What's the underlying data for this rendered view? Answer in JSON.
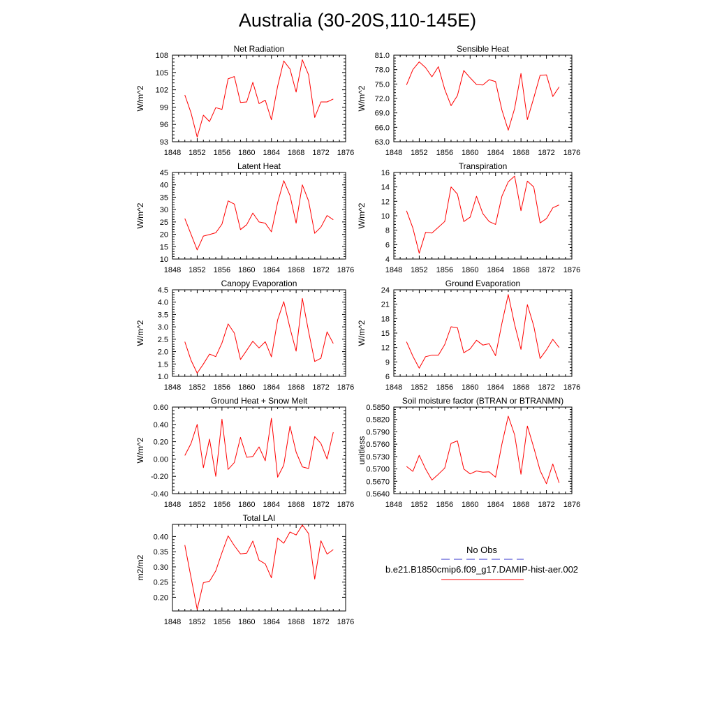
{
  "page": {
    "title": "Australia (30-20S,110-145E)"
  },
  "legend": {
    "entries": [
      {
        "name": "No Obs",
        "color": "#3333cc",
        "dash": "dashed"
      },
      {
        "name": "b.e21.B1850cmip6.f09_g17.DAMIP-hist-aer.002",
        "color": "#ff0000",
        "dash": "solid"
      }
    ]
  },
  "chart_data": [
    {
      "type": "line",
      "title": "Net Radiation",
      "ylabel": "W/m^2",
      "xlim": [
        1848,
        1876
      ],
      "ylim": [
        93,
        108
      ],
      "xticks": [
        1848,
        1852,
        1856,
        1860,
        1864,
        1868,
        1872,
        1876
      ],
      "yticks": [
        "93",
        "96",
        "99",
        "102",
        "105",
        "108"
      ],
      "x": [
        1850,
        1851,
        1852,
        1853,
        1854,
        1855,
        1856,
        1857,
        1858,
        1859,
        1860,
        1861,
        1862,
        1863,
        1864,
        1865,
        1866,
        1867,
        1868,
        1869,
        1870,
        1871,
        1872,
        1873,
        1874
      ],
      "series": [
        {
          "color": "#ff0000",
          "values": [
            101.1,
            98.0,
            93.8,
            97.6,
            96.5,
            98.9,
            98.6,
            103.9,
            104.3,
            99.8,
            99.9,
            103.3,
            99.6,
            100.2,
            96.8,
            102.6,
            107.0,
            105.6,
            101.6,
            107.2,
            104.6,
            97.2,
            99.9,
            99.9,
            100.4
          ]
        }
      ]
    },
    {
      "type": "line",
      "title": "Sensible Heat",
      "ylabel": "W/m^2",
      "xlim": [
        1848,
        1876
      ],
      "ylim": [
        63,
        81
      ],
      "xticks": [
        1848,
        1852,
        1856,
        1860,
        1864,
        1868,
        1872,
        1876
      ],
      "yticks": [
        "63.0",
        "66.0",
        "69.0",
        "72.0",
        "75.0",
        "78.0",
        "81.0"
      ],
      "x": [
        1850,
        1851,
        1852,
        1853,
        1854,
        1855,
        1856,
        1857,
        1858,
        1859,
        1860,
        1861,
        1862,
        1863,
        1864,
        1865,
        1866,
        1867,
        1868,
        1869,
        1870,
        1871,
        1872,
        1873,
        1874
      ],
      "series": [
        {
          "color": "#ff0000",
          "values": [
            74.8,
            78.0,
            79.6,
            78.4,
            76.5,
            78.6,
            73.9,
            70.5,
            72.6,
            77.8,
            76.3,
            74.9,
            74.8,
            75.9,
            75.5,
            69.6,
            65.4,
            69.9,
            77.2,
            67.6,
            72.1,
            76.8,
            76.9,
            72.4,
            74.4
          ]
        }
      ]
    },
    {
      "type": "line",
      "title": "Latent Heat",
      "ylabel": "W/m^2",
      "xlim": [
        1848,
        1876
      ],
      "ylim": [
        10,
        45
      ],
      "xticks": [
        1848,
        1852,
        1856,
        1860,
        1864,
        1868,
        1872,
        1876
      ],
      "yticks": [
        "10",
        "15",
        "20",
        "25",
        "30",
        "35",
        "40",
        "45"
      ],
      "x": [
        1850,
        1851,
        1852,
        1853,
        1854,
        1855,
        1856,
        1857,
        1858,
        1859,
        1860,
        1861,
        1862,
        1863,
        1864,
        1865,
        1866,
        1867,
        1868,
        1869,
        1870,
        1871,
        1872,
        1873,
        1874
      ],
      "series": [
        {
          "color": "#ff0000",
          "values": [
            26.4,
            20.0,
            13.7,
            19.3,
            19.9,
            20.6,
            24.1,
            33.5,
            32.2,
            21.9,
            23.9,
            28.6,
            25.0,
            24.5,
            21.0,
            32.8,
            41.7,
            35.7,
            24.5,
            40.0,
            33.5,
            20.4,
            22.9,
            27.6,
            25.9
          ]
        }
      ]
    },
    {
      "type": "line",
      "title": "Transpiration",
      "ylabel": "W/m^2",
      "xlim": [
        1848,
        1876
      ],
      "ylim": [
        4,
        16
      ],
      "xticks": [
        1848,
        1852,
        1856,
        1860,
        1864,
        1868,
        1872,
        1876
      ],
      "yticks": [
        "4",
        "6",
        "8",
        "10",
        "12",
        "14",
        "16"
      ],
      "x": [
        1850,
        1851,
        1852,
        1853,
        1854,
        1855,
        1856,
        1857,
        1858,
        1859,
        1860,
        1861,
        1862,
        1863,
        1864,
        1865,
        1866,
        1867,
        1868,
        1869,
        1870,
        1871,
        1872,
        1873,
        1874
      ],
      "series": [
        {
          "color": "#ff0000",
          "values": [
            10.7,
            8.3,
            4.8,
            7.7,
            7.6,
            8.4,
            9.2,
            14.0,
            13.0,
            9.2,
            9.8,
            12.7,
            10.3,
            9.2,
            8.8,
            12.7,
            14.7,
            15.5,
            10.7,
            14.8,
            14.0,
            9.0,
            9.6,
            11.1,
            11.5
          ]
        }
      ]
    },
    {
      "type": "line",
      "title": "Canopy Evaporation",
      "ylabel": "W/m^2",
      "xlim": [
        1848,
        1876
      ],
      "ylim": [
        1.0,
        4.5
      ],
      "xticks": [
        1848,
        1852,
        1856,
        1860,
        1864,
        1868,
        1872,
        1876
      ],
      "yticks": [
        "1.0",
        "1.5",
        "2.0",
        "2.5",
        "3.0",
        "3.5",
        "4.0",
        "4.5"
      ],
      "x": [
        1850,
        1851,
        1852,
        1853,
        1854,
        1855,
        1856,
        1857,
        1858,
        1859,
        1860,
        1861,
        1862,
        1863,
        1864,
        1865,
        1866,
        1867,
        1868,
        1869,
        1870,
        1871,
        1872,
        1873,
        1874
      ],
      "series": [
        {
          "color": "#ff0000",
          "values": [
            2.4,
            1.65,
            1.13,
            1.5,
            1.9,
            1.8,
            2.35,
            3.12,
            2.75,
            1.68,
            2.05,
            2.42,
            2.15,
            2.4,
            1.79,
            3.28,
            4.02,
            2.95,
            2.02,
            4.15,
            2.82,
            1.6,
            1.73,
            2.8,
            2.33
          ]
        }
      ]
    },
    {
      "type": "line",
      "title": "Ground Evaporation",
      "ylabel": "W/m^2",
      "xlim": [
        1848,
        1876
      ],
      "ylim": [
        6,
        24
      ],
      "xticks": [
        1848,
        1852,
        1856,
        1860,
        1864,
        1868,
        1872,
        1876
      ],
      "yticks": [
        "6",
        "9",
        "12",
        "15",
        "18",
        "21",
        "24"
      ],
      "x": [
        1850,
        1851,
        1852,
        1853,
        1854,
        1855,
        1856,
        1857,
        1858,
        1859,
        1860,
        1861,
        1862,
        1863,
        1864,
        1865,
        1866,
        1867,
        1868,
        1869,
        1870,
        1871,
        1872,
        1873,
        1874
      ],
      "series": [
        {
          "color": "#ff0000",
          "values": [
            13.2,
            10.2,
            7.7,
            10.1,
            10.4,
            10.4,
            12.6,
            16.3,
            16.1,
            10.9,
            11.7,
            13.5,
            12.5,
            12.8,
            10.3,
            17.0,
            23.0,
            16.8,
            11.6,
            20.9,
            16.5,
            9.7,
            11.5,
            13.7,
            12.0
          ]
        }
      ]
    },
    {
      "type": "line",
      "title": "Ground Heat + Snow Melt",
      "ylabel": "W/m^2",
      "xlim": [
        1848,
        1876
      ],
      "ylim": [
        -0.4,
        0.6
      ],
      "xticks": [
        1848,
        1852,
        1856,
        1860,
        1864,
        1868,
        1872,
        1876
      ],
      "yticks": [
        "-0.40",
        "-0.20",
        "0.00",
        "0.20",
        "0.40",
        "0.60"
      ],
      "x": [
        1850,
        1851,
        1852,
        1853,
        1854,
        1855,
        1856,
        1857,
        1858,
        1859,
        1860,
        1861,
        1862,
        1863,
        1864,
        1865,
        1866,
        1867,
        1868,
        1869,
        1870,
        1871,
        1872,
        1873,
        1874
      ],
      "series": [
        {
          "color": "#ff0000",
          "values": [
            0.04,
            0.18,
            0.4,
            -0.1,
            0.23,
            -0.2,
            0.46,
            -0.12,
            -0.04,
            0.25,
            0.02,
            0.03,
            0.14,
            -0.02,
            0.47,
            -0.21,
            -0.07,
            0.38,
            0.08,
            -0.09,
            -0.11,
            0.26,
            0.18,
            0.0,
            0.31
          ]
        }
      ]
    },
    {
      "type": "line",
      "title": "Soil moisture factor (BTRAN or BTRANMN)",
      "ylabel": "unitless",
      "xlim": [
        1848,
        1876
      ],
      "ylim": [
        0.564,
        0.585
      ],
      "xticks": [
        1848,
        1852,
        1856,
        1860,
        1864,
        1868,
        1872,
        1876
      ],
      "yticks": [
        "0.5640",
        "0.5670",
        "0.5700",
        "0.5730",
        "0.5760",
        "0.5790",
        "0.5820",
        "0.5850"
      ],
      "x": [
        1850,
        1851,
        1852,
        1853,
        1854,
        1855,
        1856,
        1857,
        1858,
        1859,
        1860,
        1861,
        1862,
        1863,
        1864,
        1865,
        1866,
        1867,
        1868,
        1869,
        1870,
        1871,
        1872,
        1873,
        1874
      ],
      "series": [
        {
          "color": "#ff0000",
          "values": [
            0.5706,
            0.5694,
            0.5733,
            0.57,
            0.5673,
            0.5687,
            0.5702,
            0.5762,
            0.5768,
            0.57,
            0.5688,
            0.5695,
            0.5692,
            0.5693,
            0.568,
            0.576,
            0.5828,
            0.5783,
            0.5687,
            0.5804,
            0.5752,
            0.5696,
            0.5664,
            0.5712,
            0.5666
          ]
        }
      ]
    },
    {
      "type": "line",
      "title": "Total LAI",
      "ylabel": "m2/m2",
      "xlim": [
        1848,
        1876
      ],
      "ylim": [
        0.155,
        0.44
      ],
      "xticks": [
        1848,
        1852,
        1856,
        1860,
        1864,
        1868,
        1872,
        1876
      ],
      "yticks": [
        "0.20",
        "0.25",
        "0.30",
        "0.35",
        "0.40"
      ],
      "ytick_values": [
        0.2,
        0.25,
        0.3,
        0.35,
        0.4
      ],
      "x": [
        1850,
        1851,
        1852,
        1853,
        1854,
        1855,
        1856,
        1857,
        1858,
        1859,
        1860,
        1861,
        1862,
        1863,
        1864,
        1865,
        1866,
        1867,
        1868,
        1869,
        1870,
        1871,
        1872,
        1873,
        1874
      ],
      "series": [
        {
          "color": "#ff0000",
          "values": [
            0.372,
            0.265,
            0.16,
            0.248,
            0.253,
            0.287,
            0.347,
            0.402,
            0.37,
            0.343,
            0.345,
            0.385,
            0.322,
            0.31,
            0.264,
            0.395,
            0.378,
            0.415,
            0.405,
            0.438,
            0.41,
            0.26,
            0.386,
            0.342,
            0.357
          ]
        }
      ]
    }
  ]
}
